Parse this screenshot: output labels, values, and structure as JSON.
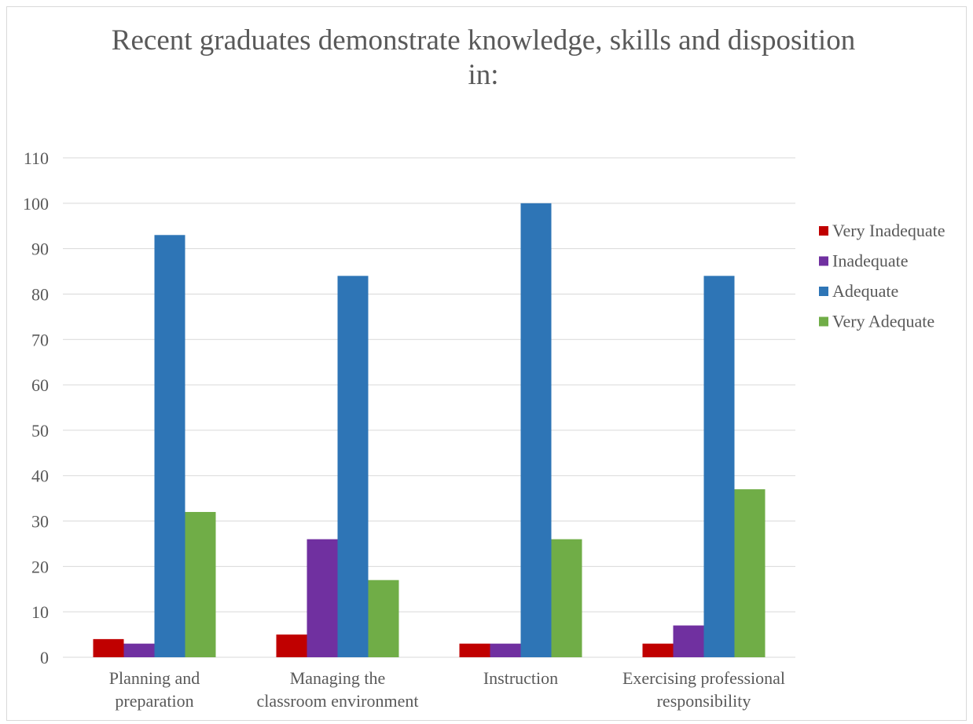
{
  "chart_data": {
    "type": "bar",
    "title_lines": [
      "Recent graduates demonstrate knowledge, skills and disposition",
      "in:"
    ],
    "categories": [
      [
        "Planning and",
        "preparation"
      ],
      [
        "Managing the",
        "classroom environment"
      ],
      [
        "Instruction"
      ],
      [
        "Exercising professional",
        "responsibility"
      ]
    ],
    "series": [
      {
        "name": "Very Inadequate",
        "color": "#c00000",
        "values": [
          4,
          5,
          3,
          3
        ]
      },
      {
        "name": "Inadequate",
        "color": "#7030a0",
        "values": [
          3,
          26,
          3,
          7
        ]
      },
      {
        "name": "Adequate",
        "color": "#2e75b6",
        "values": [
          93,
          84,
          100,
          84
        ]
      },
      {
        "name": "Very Adequate",
        "color": "#70ad47",
        "values": [
          32,
          17,
          26,
          37
        ]
      }
    ],
    "ylim": [
      0,
      110
    ],
    "yticks": [
      0,
      10,
      20,
      30,
      40,
      50,
      60,
      70,
      80,
      90,
      100,
      110
    ],
    "grid": true,
    "legend_position": "right"
  }
}
